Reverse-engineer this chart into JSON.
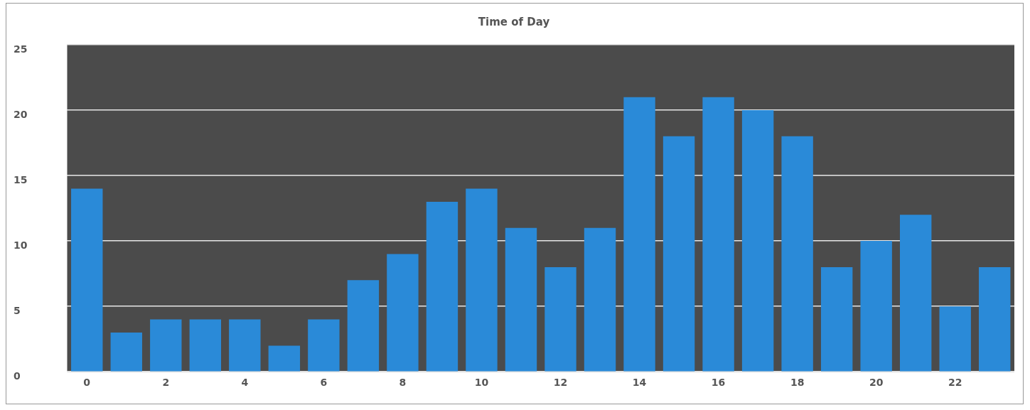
{
  "chart_data": {
    "type": "bar",
    "title": "Time of Day",
    "categories": [
      "0",
      null,
      "2",
      null,
      "4",
      null,
      "6",
      null,
      "8",
      null,
      "10",
      null,
      "12",
      null,
      "14",
      null,
      "16",
      null,
      "18",
      null,
      "20",
      null,
      "22",
      null
    ],
    "values": [
      14,
      3,
      4,
      4,
      4,
      2,
      4,
      7,
      9,
      13,
      14,
      11,
      8,
      11,
      21,
      18,
      21,
      20,
      18,
      8,
      10,
      12,
      5,
      8
    ],
    "color": "#2a8ad8",
    "ylim": [
      0,
      25
    ],
    "yticks": [
      0,
      5,
      10,
      15,
      20,
      25
    ],
    "grid": "y",
    "legend": false
  }
}
